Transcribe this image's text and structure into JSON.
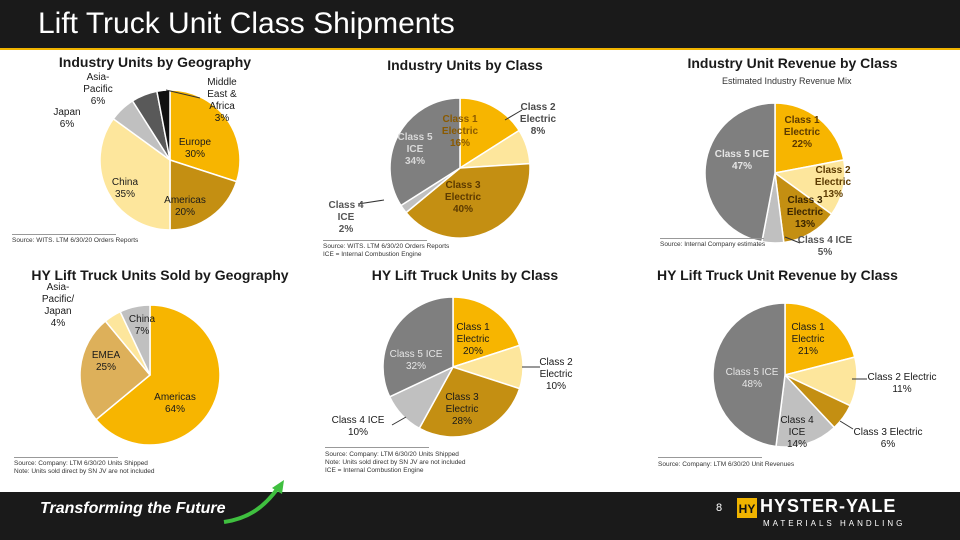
{
  "header": {
    "title": "Lift Truck Unit Class Shipments"
  },
  "footer": {
    "tagline": "Transforming the Future",
    "page_number": "8",
    "brand_name": "HYSTER-YALE",
    "brand_sub": "MATERIALS HANDLING"
  },
  "colors": {
    "gold": "#f7b500",
    "pale_gold": "#fde69c",
    "tan": "#ddb05a",
    "dark_gold": "#c48f12",
    "gray": "#7f7f7f",
    "light_gray": "#c0c0c0",
    "dark_gray": "#595959",
    "black": "#111111",
    "accent": "#f0b400"
  },
  "chart_data": [
    {
      "type": "pie",
      "title": "Industry Units by Geography",
      "source": "Source: WITS.  LTM 6/30/20 Orders Reports",
      "series": [
        {
          "values": [
            30,
            20,
            35,
            6,
            6,
            3
          ]
        }
      ],
      "categories": [
        "Europe",
        "Americas",
        "China",
        "Japan",
        "Asia-Pacific",
        "Middle East & Africa"
      ],
      "labels": [
        [
          "Europe",
          "30%"
        ],
        [
          "Americas",
          "20%"
        ],
        [
          "China",
          "35%"
        ],
        [
          "Japan",
          "6%"
        ],
        [
          "Asia-",
          "Pacific",
          "6%"
        ],
        [
          "Middle",
          "East &",
          "Africa",
          "3%"
        ]
      ]
    },
    {
      "type": "pie",
      "title": "Industry Units by Class",
      "source": [
        "Source: WITS.  LTM 6/30/20 Orders Reports",
        "ICE = Internal Combustion Engine"
      ],
      "series": [
        {
          "values": [
            16,
            8,
            40,
            2,
            34
          ]
        }
      ],
      "categories": [
        "Class 1 Electric",
        "Class 2 Electric",
        "Class 3 Electric",
        "Class 4 ICE",
        "Class 5 ICE"
      ],
      "labels": [
        [
          "Class 1",
          "Electric",
          "16%"
        ],
        [
          "Class 2",
          "Electric",
          "8%"
        ],
        [
          "Class 3",
          "Electric",
          "40%"
        ],
        [
          "Class 4",
          "ICE",
          "2%"
        ],
        [
          "Class 5",
          "ICE",
          "34%"
        ]
      ]
    },
    {
      "type": "pie",
      "title": "Industry Unit Revenue by Class",
      "subtitle": "Estimated Industry Revenue Mix",
      "source": "Source: Internal Company estimates",
      "series": [
        {
          "values": [
            22,
            13,
            13,
            5,
            47
          ]
        }
      ],
      "categories": [
        "Class 1 Electric",
        "Class 2 Electric",
        "Class 3 Electric",
        "Class 4 ICE",
        "Class 5 ICE"
      ],
      "labels": [
        [
          "Class 1",
          "Electric",
          "22%"
        ],
        [
          "Class 2",
          "Electric",
          "13%"
        ],
        [
          "Class 3",
          "Electric",
          "13%"
        ],
        [
          "Class 4 ICE",
          "5%"
        ],
        [
          "Class 5 ICE",
          "47%"
        ]
      ]
    },
    {
      "type": "pie",
      "title": "HY Lift Truck Units Sold by Geography",
      "source": [
        "Source: Company: LTM 6/30/20 Units Shipped",
        "Note:  Units sold direct by SN JV are not included"
      ],
      "series": [
        {
          "values": [
            64,
            25,
            4,
            7
          ]
        }
      ],
      "categories": [
        "Americas",
        "EMEA",
        "Asia-Pacific/ Japan",
        "China"
      ],
      "labels": [
        [
          "Americas",
          "64%"
        ],
        [
          "EMEA",
          "25%"
        ],
        [
          "Asia-",
          "Pacific/",
          "Japan",
          "4%"
        ],
        [
          "China",
          "7%"
        ]
      ]
    },
    {
      "type": "pie",
      "title": "HY Lift Truck Units by Class",
      "source": [
        "Source: Company:  LTM 6/30/20 Units Shipped",
        "Note:  Units sold direct by SN JV are not included",
        "ICE = Internal Combustion Engine"
      ],
      "series": [
        {
          "values": [
            20,
            10,
            28,
            10,
            32
          ]
        }
      ],
      "categories": [
        "Class 1 Electric",
        "Class 2 Electric",
        "Class 3 Electric",
        "Class 4 ICE",
        "Class 5 ICE"
      ],
      "labels": [
        [
          "Class 1",
          "Electric",
          "20%"
        ],
        [
          "Class 2",
          "Electric",
          "10%"
        ],
        [
          "Class 3",
          "Electric",
          "28%"
        ],
        [
          "Class 4 ICE",
          "10%"
        ],
        [
          "Class 5 ICE",
          "32%"
        ]
      ]
    },
    {
      "type": "pie",
      "title": "HY Lift Truck Unit Revenue by Class",
      "source": "Source: Company:  LTM 6/30/20 Unit Revenues",
      "series": [
        {
          "values": [
            21,
            11,
            6,
            14,
            48
          ]
        }
      ],
      "categories": [
        "Class 1 Electric",
        "Class 2 Electric",
        "Class 3 Electric",
        "Class 4 ICE",
        "Class 5 ICE"
      ],
      "labels": [
        [
          "Class 1",
          "Electric",
          "21%"
        ],
        [
          "Class 2 Electric",
          "11%"
        ],
        [
          "Class 3 Electric",
          "6%"
        ],
        [
          "Class 4",
          "ICE",
          "14%"
        ],
        [
          "Class 5 ICE",
          "48%"
        ]
      ]
    }
  ]
}
